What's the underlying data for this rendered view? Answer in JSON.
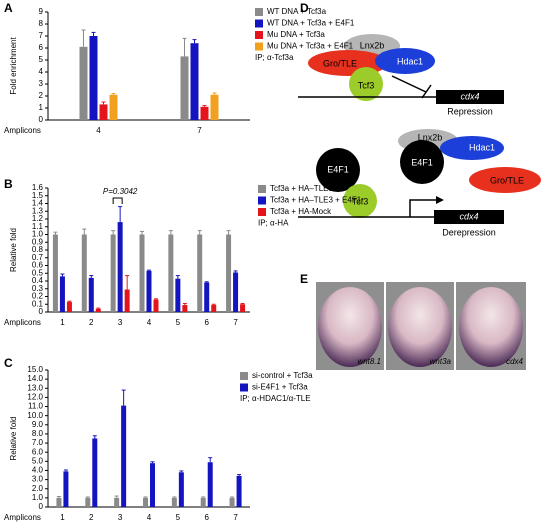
{
  "panel_labels": [
    "A",
    "B",
    "C",
    "D",
    "E"
  ],
  "chart_data": [
    {
      "type": "bar",
      "y_label": "Fold enrichment",
      "x_label": "Amplicons",
      "note": "IP; α-Tcf3a",
      "categories": [
        "4",
        "7"
      ],
      "series": [
        {
          "name": "WT DNA + Tcf3a",
          "color": "#8a8a8a",
          "values": [
            6.1,
            5.3
          ],
          "errors": [
            1.4,
            1.5
          ]
        },
        {
          "name": "WT DNA + Tcf3a + E4F1",
          "color": "#1414c0",
          "values": [
            7.0,
            6.4
          ],
          "errors": [
            0.3,
            0.3
          ]
        },
        {
          "name": "Mu DNA + Tcf3a",
          "color": "#e5141c",
          "values": [
            1.3,
            1.1
          ],
          "errors": [
            0.2,
            0.1
          ]
        },
        {
          "name": "Mu DNA + Tcf3a + E4F1",
          "color": "#f2a020",
          "values": [
            2.1,
            2.1
          ],
          "errors": [
            0.1,
            0.15
          ]
        }
      ],
      "ylim": [
        0,
        9
      ],
      "yticks": [
        0,
        1,
        2,
        3,
        4,
        5,
        6,
        7,
        8,
        9
      ]
    },
    {
      "type": "bar",
      "y_label": "Relative fold",
      "x_label": "Amplicons",
      "note": "IP; α-HA",
      "annotation": "P=0.3042",
      "categories": [
        "1",
        "2",
        "3",
        "4",
        "5",
        "6",
        "7"
      ],
      "series": [
        {
          "name": "Tcf3a + HA–TLE3",
          "color": "#8a8a8a",
          "values": [
            1.0,
            1.0,
            1.0,
            1.0,
            1.0,
            1.0,
            1.0
          ],
          "errors": [
            0.03,
            0.07,
            0.05,
            0.04,
            0.05,
            0.05,
            0.05
          ]
        },
        {
          "name": "Tcf3a + HA–TLE3 + E4F1",
          "color": "#1414c0",
          "values": [
            0.46,
            0.44,
            1.16,
            0.53,
            0.43,
            0.38,
            0.51
          ],
          "errors": [
            0.03,
            0.03,
            0.2,
            0.01,
            0.04,
            0.01,
            0.02
          ]
        },
        {
          "name": "Tcf3a + HA-Mock",
          "color": "#e5141c",
          "values": [
            0.13,
            0.04,
            0.29,
            0.16,
            0.09,
            0.09,
            0.1
          ],
          "errors": [
            0.01,
            0.01,
            0.18,
            0.01,
            0.02,
            0.01,
            0.01
          ]
        }
      ],
      "ylim": [
        0,
        1.6
      ],
      "yticks": [
        0,
        0.1,
        0.2,
        0.3,
        0.4,
        0.5,
        0.6,
        0.7,
        0.8,
        0.9,
        {
          "value": 1,
          "label": "1.0"
        },
        1.1,
        1.2,
        1.3,
        1.4,
        1.5,
        1.6
      ]
    },
    {
      "type": "bar",
      "y_label": "Relative fold",
      "x_label": "Amplicons",
      "note": "IP; α-HDAC1/α-TLE",
      "categories": [
        "1",
        "2",
        "3",
        "4",
        "5",
        "6",
        "7"
      ],
      "series": [
        {
          "name": "si-control + Tcf3a",
          "color": "#8a8a8a",
          "values": [
            1.0,
            1.0,
            1.0,
            1.0,
            1.0,
            1.0,
            1.0
          ],
          "errors": [
            0.15,
            0.1,
            0.2,
            0.1,
            0.1,
            0.1,
            0.1
          ]
        },
        {
          "name": "si-E4F1 + Tcf3a",
          "color": "#1414c0",
          "values": [
            3.9,
            7.5,
            11.1,
            4.8,
            3.8,
            4.9,
            3.4
          ],
          "errors": [
            0.15,
            0.3,
            1.7,
            0.15,
            0.15,
            0.5,
            0.15
          ]
        }
      ],
      "ylim": [
        0,
        15
      ],
      "yticks": [
        0,
        {
          "value": 1,
          "label": "1.0"
        },
        {
          "value": 2,
          "label": "2.0"
        },
        {
          "value": 3,
          "label": "3.0"
        },
        {
          "value": 4,
          "label": "4.0"
        },
        {
          "value": 5,
          "label": "5.0"
        },
        {
          "value": 6,
          "label": "6.0"
        },
        {
          "value": 7,
          "label": "7.0"
        },
        {
          "value": 8,
          "label": "8.0"
        },
        {
          "value": 9,
          "label": "9.0"
        },
        {
          "value": 10,
          "label": "10.0"
        },
        {
          "value": 11,
          "label": "11.0"
        },
        {
          "value": 12,
          "label": "12.0"
        },
        {
          "value": 13,
          "label": "13.0"
        },
        {
          "value": 14,
          "label": "14.0"
        },
        {
          "value": 15,
          "label": "15.0"
        }
      ]
    }
  ],
  "diagram": {
    "repression": {
      "lnx2b": "Lnx2b",
      "gro_tle": "Gro/TLE",
      "hdac1": "Hdac1",
      "tcf3": "Tcf3",
      "gene": "cdx4",
      "caption": "Repression"
    },
    "derepression": {
      "e4f1_left": "E4F1",
      "e4f1_right": "E4F1",
      "tcf3": "Tcf3",
      "lnx2b": "Lnx2b",
      "hdac1": "Hdac1",
      "gro_tle": "Gro/TLE",
      "gene": "cdx4",
      "caption": "Derepression"
    }
  },
  "images": [
    "wnt8.1",
    "wnt3a",
    "cdx4"
  ]
}
